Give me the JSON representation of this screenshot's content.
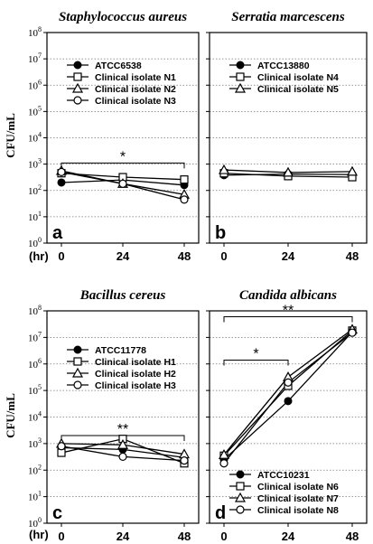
{
  "figure": {
    "ylabel": "CFU/mL",
    "xunit": "(hr)"
  },
  "chart_data": [
    {
      "type": "line",
      "panel_letter": "a",
      "title": "Staphylococcus aureus",
      "x": [
        0,
        24,
        48
      ],
      "xticks": [
        "0",
        "24",
        "48"
      ],
      "ylim": [
        1,
        100000000
      ],
      "yscale": "log",
      "grid": true,
      "legend_position": "top-right",
      "series": [
        {
          "name": "ATCC6538",
          "marker": "filled-circle",
          "values": [
            200,
            250,
            160
          ]
        },
        {
          "name": "Clinical isolate N1",
          "marker": "open-square",
          "values": [
            450,
            320,
            260
          ]
        },
        {
          "name": "Clinical isolate N2",
          "marker": "open-triangle",
          "values": [
            560,
            180,
            70
          ]
        },
        {
          "name": "Clinical isolate N3",
          "marker": "open-circle",
          "values": [
            500,
            180,
            45
          ]
        }
      ],
      "annotations": [
        {
          "text": "*",
          "x0": 0,
          "x1": 48,
          "y": 1100
        }
      ]
    },
    {
      "type": "line",
      "panel_letter": "b",
      "title": "Serratia marcescens",
      "x": [
        0,
        24,
        48
      ],
      "xticks": [
        "0",
        "24",
        "48"
      ],
      "ylim": [
        1,
        100000000
      ],
      "yscale": "log",
      "grid": true,
      "legend_position": "top-right",
      "series": [
        {
          "name": "ATCC13880",
          "marker": "filled-circle",
          "values": [
            380,
            420,
            400
          ]
        },
        {
          "name": "Clinical isolate N4",
          "marker": "open-square",
          "values": [
            450,
            350,
            320
          ]
        },
        {
          "name": "Clinical isolate N5",
          "marker": "open-triangle",
          "values": [
            600,
            480,
            520
          ]
        }
      ],
      "annotations": []
    },
    {
      "type": "line",
      "panel_letter": "c",
      "title": "Bacillus cereus",
      "x": [
        0,
        24,
        48
      ],
      "xticks": [
        "0",
        "24",
        "48"
      ],
      "ylim": [
        1,
        100000000
      ],
      "yscale": "log",
      "grid": true,
      "legend_position": "right",
      "series": [
        {
          "name": "ATCC11778",
          "marker": "filled-circle",
          "values": [
            700,
            600,
            300
          ]
        },
        {
          "name": "Clinical isolate H1",
          "marker": "open-square",
          "values": [
            450,
            1500,
            180
          ]
        },
        {
          "name": "Clinical isolate H2",
          "marker": "open-triangle",
          "values": [
            1000,
            900,
            400
          ]
        },
        {
          "name": "Clinical isolate H3",
          "marker": "open-circle",
          "values": [
            800,
            320,
            230
          ]
        }
      ],
      "annotations": [
        {
          "text": "**",
          "x0": 0,
          "x1": 48,
          "y": 2000
        }
      ]
    },
    {
      "type": "line",
      "panel_letter": "d",
      "title": "Candida albicans",
      "x": [
        0,
        24,
        48
      ],
      "xticks": [
        "0",
        "24",
        "48"
      ],
      "ylim": [
        1,
        100000000
      ],
      "yscale": "log",
      "grid": true,
      "legend_position": "bottom-right",
      "series": [
        {
          "name": "ATCC10231",
          "marker": "filled-circle",
          "values": [
            250,
            40000,
            16000000
          ]
        },
        {
          "name": "Clinical isolate N6",
          "marker": "open-square",
          "values": [
            350,
            150000,
            18000000
          ]
        },
        {
          "name": "Clinical isolate N7",
          "marker": "open-triangle",
          "values": [
            380,
            320000,
            20000000
          ]
        },
        {
          "name": "Clinical isolate N8",
          "marker": "open-circle",
          "values": [
            180,
            200000,
            15000000
          ]
        }
      ],
      "annotations": [
        {
          "text": "**",
          "x0": 0,
          "x1": 48,
          "y": 60000000
        },
        {
          "text": "*",
          "x0": 0,
          "x1": 24,
          "y": 1400000
        }
      ]
    }
  ]
}
